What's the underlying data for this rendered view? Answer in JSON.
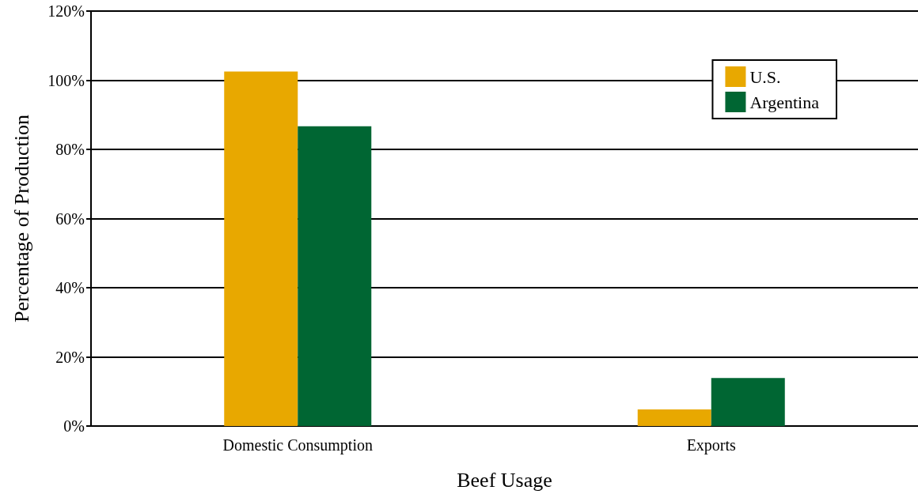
{
  "chart_data": {
    "type": "bar",
    "xlabel": "Beef Usage",
    "ylabel": "Percentage of Production",
    "categories": [
      "Domestic Consumption",
      "Exports"
    ],
    "series": [
      {
        "name": "U.S.",
        "color": "#e8a800",
        "values": [
          102.5,
          4.8
        ]
      },
      {
        "name": "Argentina",
        "color": "#006633",
        "values": [
          86.7,
          13.9
        ]
      }
    ],
    "ylim": [
      0,
      120
    ],
    "yticks": [
      {
        "value": 0,
        "label": "0%"
      },
      {
        "value": 20,
        "label": "20%"
      },
      {
        "value": 40,
        "label": "40%"
      },
      {
        "value": 60,
        "label": "60%"
      },
      {
        "value": 80,
        "label": "80%"
      },
      {
        "value": 100,
        "label": "100%"
      },
      {
        "value": 120,
        "label": "120%"
      }
    ],
    "grid": "y",
    "legend": "top right"
  }
}
